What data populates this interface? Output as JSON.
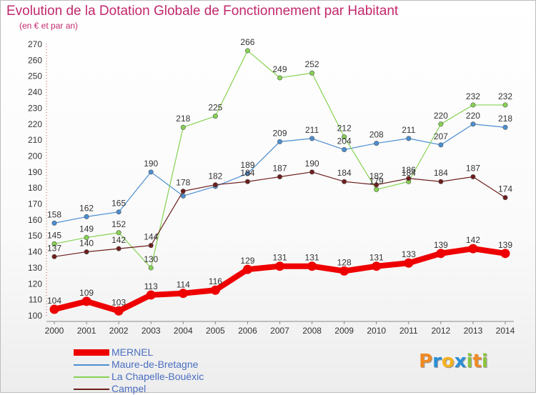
{
  "title": "Evolution de la Dotation Globale de Fonctionnement par Habitant",
  "subtitle": "(en € et par an)",
  "logo": {
    "text": "Proxiti",
    "colors": [
      "#f08a24",
      "#2a8fd6",
      "#f5b21c",
      "#2a8fd6",
      "#8bc43f",
      "#f08a24",
      "#8bc43f"
    ]
  },
  "chart_data": {
    "type": "line",
    "title": "Evolution de la Dotation Globale de Fonctionnement par Habitant",
    "subtitle": "(en € et par an)",
    "x": [
      "2000",
      "2001",
      "2002",
      "2003",
      "2004",
      "2005",
      "2006",
      "2007",
      "2008",
      "2009",
      "2010",
      "2011",
      "2012",
      "2013",
      "2014"
    ],
    "ylim": [
      100,
      270
    ],
    "yticks": [
      100,
      110,
      120,
      130,
      140,
      150,
      160,
      170,
      180,
      190,
      200,
      210,
      220,
      230,
      240,
      250,
      260,
      270
    ],
    "grid": false,
    "legend_position": "bottom-left",
    "series": [
      {
        "name": "MERNEL",
        "color": "#ee0000",
        "values": [
          104,
          109,
          103,
          113,
          114,
          116,
          129,
          131,
          131,
          128,
          131,
          133,
          139,
          142,
          139
        ]
      },
      {
        "name": "Maure-de-Bretagne",
        "color": "#4a8ed2",
        "values": [
          158,
          162,
          165,
          190,
          175,
          181,
          189,
          209,
          211,
          204,
          208,
          211,
          207,
          220,
          218
        ]
      },
      {
        "name": "La Chapelle-Bouëxic",
        "color": "#86d252",
        "values": [
          145,
          149,
          152,
          130,
          218,
          225,
          266,
          249,
          252,
          212,
          179,
          184,
          220,
          232,
          232
        ]
      },
      {
        "name": "Campel",
        "color": "#6e1e1e",
        "values": [
          137,
          140,
          142,
          144,
          178,
          182,
          184,
          187,
          190,
          184,
          182,
          186,
          184,
          187,
          174
        ]
      }
    ],
    "labels": {
      "MERNEL": [
        "104",
        "109",
        "103",
        "113",
        "114",
        "116",
        "129",
        "131",
        "131",
        "128",
        "131",
        "133",
        "139",
        "142",
        "139"
      ],
      "Maure-de-Bretagne": [
        "158",
        "162",
        "165",
        "190",
        "",
        "",
        "189",
        "209",
        "211",
        "204",
        "208",
        "211",
        "207",
        "220",
        "218"
      ],
      "La Chapelle-Bouëxic": [
        "145",
        "149",
        "152",
        "130",
        "218",
        "225",
        "266",
        "249",
        "252",
        "212",
        "179",
        "184",
        "220",
        "232",
        "232"
      ],
      "Campel": [
        "137",
        "140",
        "142",
        "144",
        "178",
        "182",
        "184",
        "187",
        "190",
        "184",
        "182",
        "186",
        "184",
        "187",
        "174"
      ]
    }
  }
}
